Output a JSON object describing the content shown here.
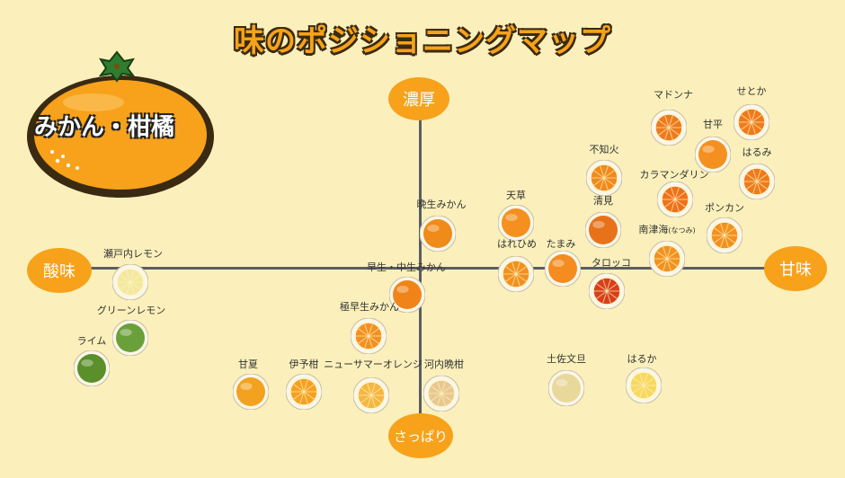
{
  "title": "味のポジショニングマップ",
  "category": "みかん・柑橘",
  "axes": {
    "top": "濃厚",
    "bottom": "さっぱり",
    "left": "酸味",
    "right": "甘味"
  },
  "colors": {
    "background": "#fbf0bb",
    "accent": "#f7a21a",
    "axis": "#5a5d63"
  },
  "items": [
    {
      "name": "マドンナ"
    },
    {
      "name": "せとか"
    },
    {
      "name": "甘平"
    },
    {
      "name": "はるみ"
    },
    {
      "name": "不知火"
    },
    {
      "name": "カラマンダリン"
    },
    {
      "name": "天草"
    },
    {
      "name": "清見"
    },
    {
      "name": "ポンカン"
    },
    {
      "name": "南津海",
      "note": "(なつみ)"
    },
    {
      "name": "晩生みかん"
    },
    {
      "name": "はれひめ"
    },
    {
      "name": "たまみ"
    },
    {
      "name": "タロッコ"
    },
    {
      "name": "早生・中生みかん"
    },
    {
      "name": "瀬戸内レモン"
    },
    {
      "name": "グリーンレモン"
    },
    {
      "name": "ライム"
    },
    {
      "name": "極早生みかん"
    },
    {
      "name": "甘夏"
    },
    {
      "name": "伊予柑"
    },
    {
      "name": "ニューサマーオレンジ"
    },
    {
      "name": "河内晩柑"
    },
    {
      "name": "土佐文旦"
    },
    {
      "name": "はるか"
    }
  ]
}
